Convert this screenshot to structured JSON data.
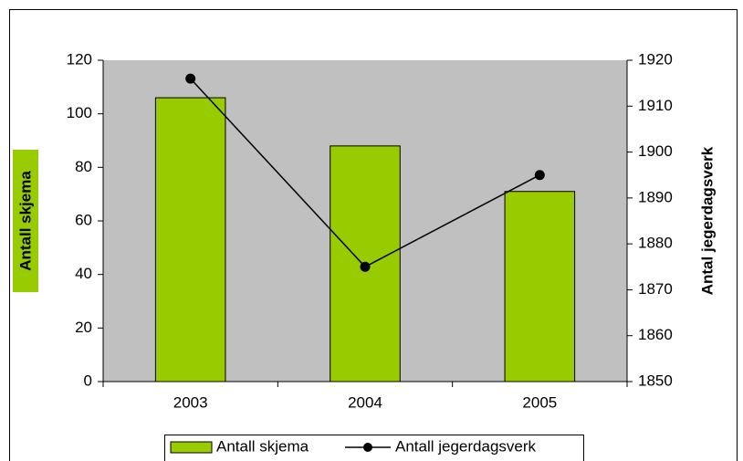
{
  "chart_data": {
    "type": "bar",
    "categories": [
      "2003",
      "2004",
      "2005"
    ],
    "series": [
      {
        "name": "Antall skjema",
        "type": "bar",
        "color": "#99cc00",
        "values": [
          106,
          88,
          71
        ]
      },
      {
        "name": "Antall jegerdagsverk",
        "type": "line",
        "color": "#000000",
        "axis": "y2",
        "values": [
          1916,
          1875,
          1895
        ]
      }
    ],
    "y_label": "Antall skjema",
    "y2_label": "Antal jegerdagsverk",
    "ylim": [
      0,
      120
    ],
    "yticks": [
      0,
      20,
      40,
      60,
      80,
      100,
      120
    ],
    "y2lim": [
      1850,
      1920
    ],
    "y2ticks": [
      1850,
      1860,
      1870,
      1880,
      1890,
      1900,
      1910,
      1920
    ],
    "plot_color": "#c0c0c0",
    "legend": "bottom"
  }
}
